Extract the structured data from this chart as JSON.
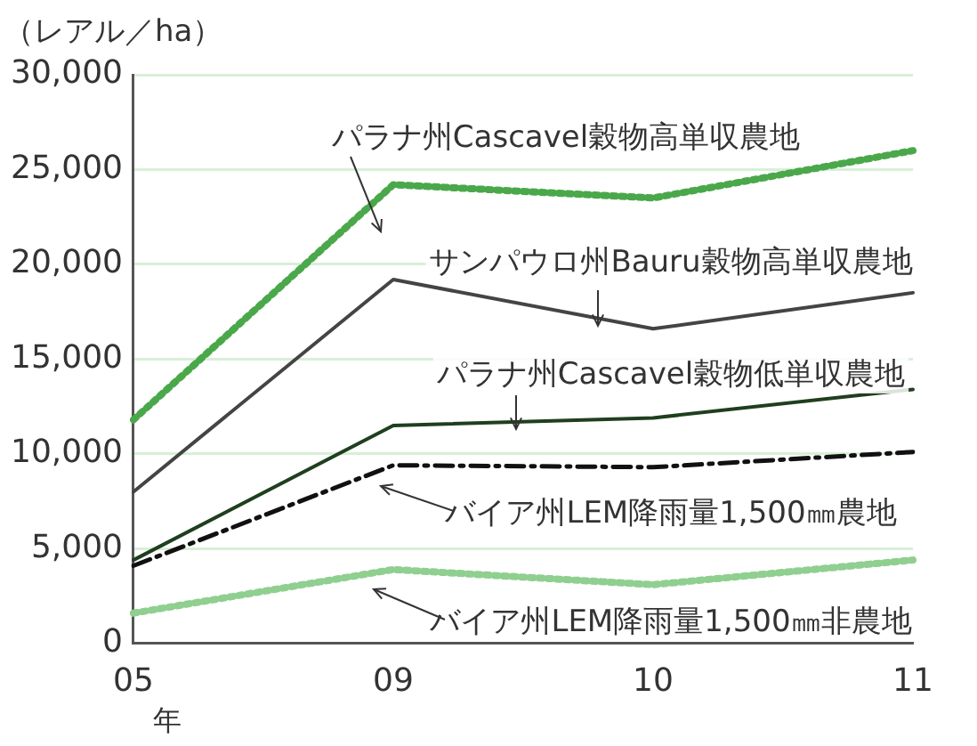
{
  "chart_data": {
    "type": "line",
    "ylabel": "（レアル／ha）",
    "xlabel": "年",
    "categories": [
      "05",
      "09",
      "10",
      "11"
    ],
    "ylim": [
      0,
      30000
    ],
    "yticks": [
      {
        "value": 0,
        "label": "0"
      },
      {
        "value": 5000,
        "label": "5,000"
      },
      {
        "value": 10000,
        "label": "10,000"
      },
      {
        "value": 15000,
        "label": "15,000"
      },
      {
        "value": 20000,
        "label": "20,000"
      },
      {
        "value": 25000,
        "label": "25,000"
      },
      {
        "value": 30000,
        "label": "30,000"
      }
    ],
    "grid": "y",
    "legend": false,
    "marker": "none",
    "series": [
      {
        "name": "パラナ州Cascavel穀物高単収農地",
        "color": "#4aa84a",
        "line_style": "dotted",
        "values": [
          11800,
          24200,
          23500,
          26000
        ]
      },
      {
        "name": "サンパウロ州Bauru穀物高単収農地",
        "color": "#444444",
        "line_style": "solid",
        "values": [
          8000,
          19200,
          16600,
          18500
        ]
      },
      {
        "name": "パラナ州Cascavel穀物低単収農地",
        "color": "#1f3f1f",
        "line_style": "solid",
        "values": [
          4400,
          11500,
          11900,
          13400
        ]
      },
      {
        "name": "バイア州LEM降雨量1,500㎜農地",
        "color": "#111111",
        "line_style": "dashed",
        "values": [
          4100,
          9400,
          9300,
          10100
        ]
      },
      {
        "name": "バイア州LEM降雨量1,500㎜非農地",
        "color": "#8fcf8f",
        "line_style": "dotted",
        "values": [
          1600,
          3900,
          3100,
          4400
        ]
      }
    ]
  }
}
